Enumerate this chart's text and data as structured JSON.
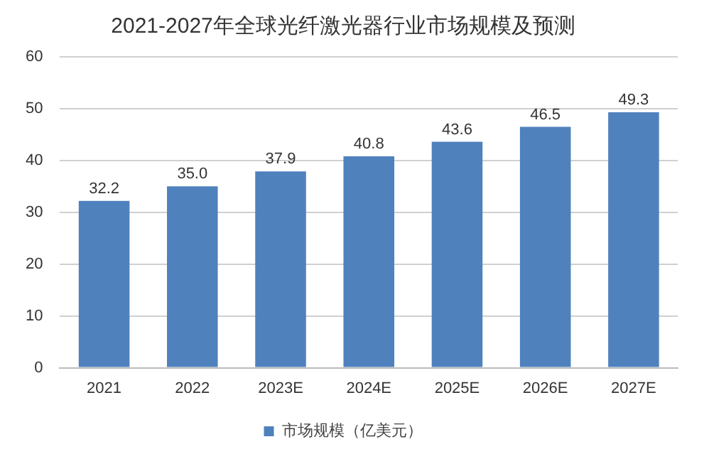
{
  "chart_data": {
    "type": "bar",
    "title": "2021-2027年全球光纤激光器行业市场规模及预测",
    "categories": [
      "2021",
      "2022",
      "2023E",
      "2024E",
      "2025E",
      "2026E",
      "2027E"
    ],
    "series": [
      {
        "name": "市场规模（亿美元）",
        "color": "#4f81bd",
        "values": [
          32.2,
          35.0,
          37.9,
          40.8,
          43.6,
          46.5,
          49.3
        ],
        "value_labels": [
          "32.2",
          "35.0",
          "37.9",
          "40.8",
          "43.6",
          "46.5",
          "49.3"
        ]
      }
    ],
    "ylim": [
      0,
      60
    ],
    "yticks": [
      0,
      10,
      20,
      30,
      40,
      50,
      60
    ],
    "grid": "y",
    "legend": "bottom"
  }
}
